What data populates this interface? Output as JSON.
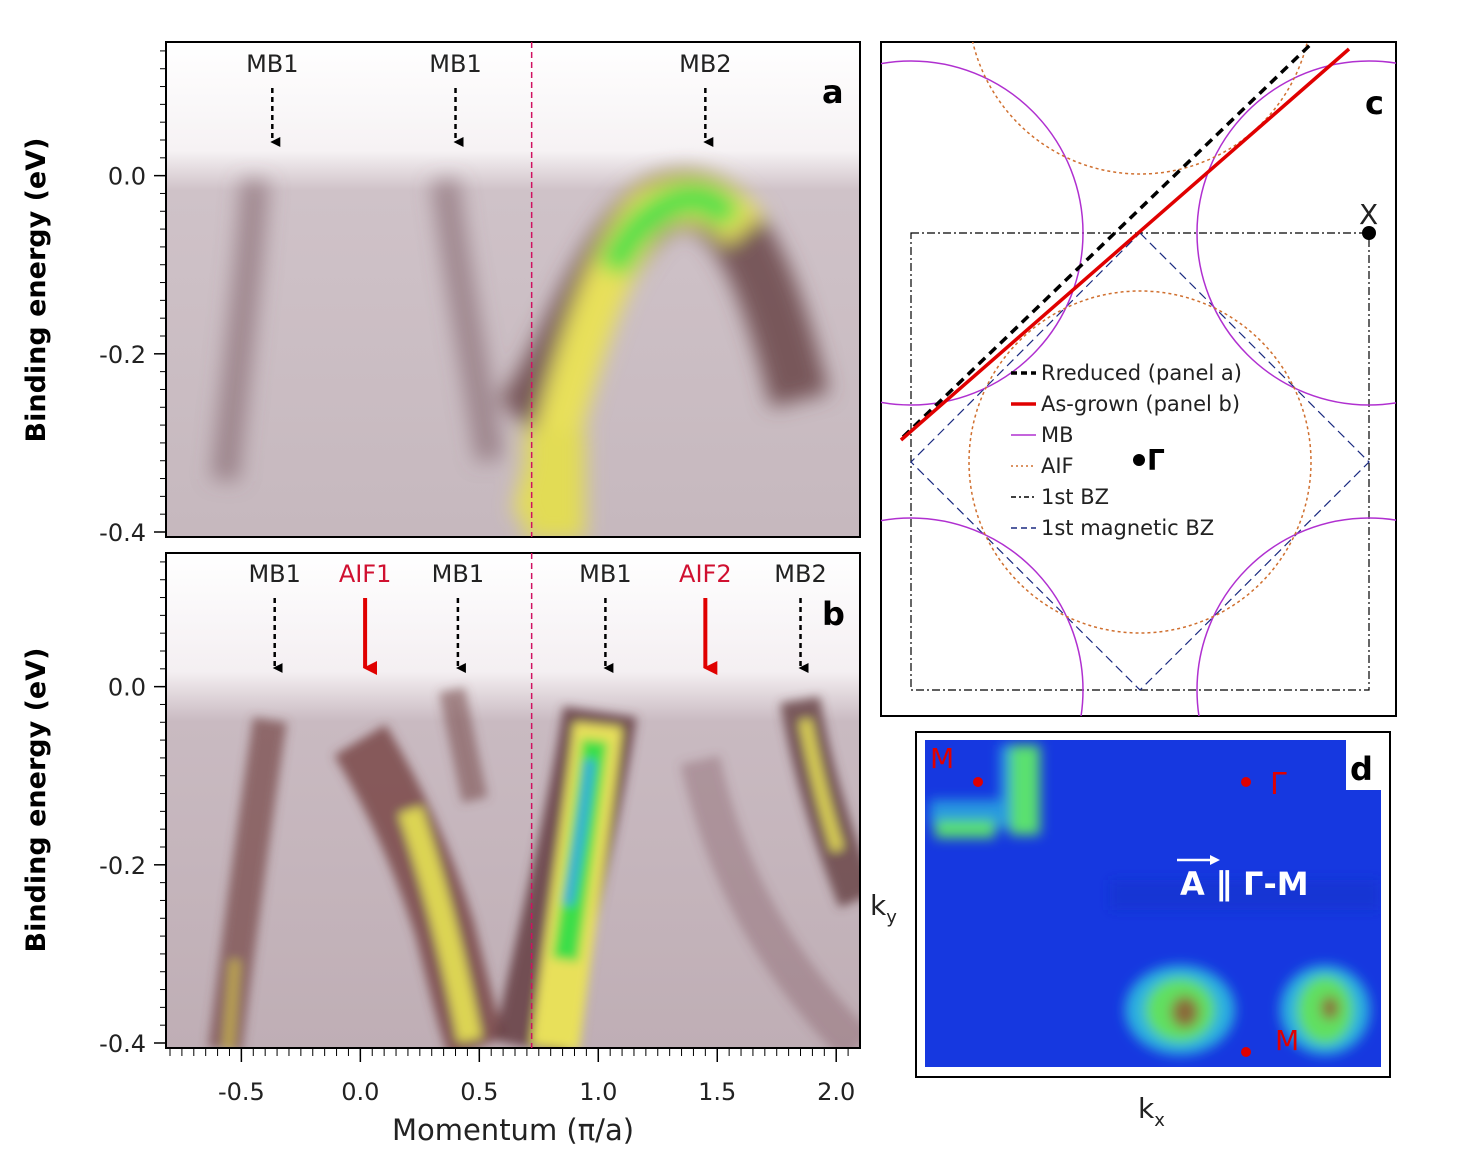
{
  "panels": {
    "a": {
      "letter": "a",
      "ylabel": "Binding energy (eV)",
      "ylim": [
        -0.4,
        0.15
      ],
      "xlim": [
        -0.8,
        2.1
      ],
      "yticks": [
        {
          "value": 0.0,
          "label": "0.0"
        },
        {
          "value": -0.2,
          "label": "-0.2"
        },
        {
          "value": -0.4,
          "label": "-0.4"
        }
      ],
      "divider_momentum": 0.72,
      "arrows": [
        {
          "label": "MB1",
          "momentum": -0.37,
          "color": "black",
          "style": "dashed"
        },
        {
          "label": "MB1",
          "momentum": 0.4,
          "color": "black",
          "style": "dashed"
        },
        {
          "label": "MB2",
          "momentum": 1.45,
          "color": "black",
          "style": "dashed"
        }
      ]
    },
    "b": {
      "letter": "b",
      "ylabel": "Binding energy (eV)",
      "xlabel": "Momentum (π/a)",
      "ylim": [
        -0.4,
        0.15
      ],
      "xlim": [
        -0.8,
        2.1
      ],
      "yticks": [
        {
          "value": 0.0,
          "label": "0.0"
        },
        {
          "value": -0.2,
          "label": "-0.2"
        },
        {
          "value": -0.4,
          "label": "-0.4"
        }
      ],
      "xticks": [
        {
          "value": -0.5,
          "label": "-0.5"
        },
        {
          "value": 0.0,
          "label": "0.0"
        },
        {
          "value": 0.5,
          "label": "0.5"
        },
        {
          "value": 1.0,
          "label": "1.0"
        },
        {
          "value": 1.5,
          "label": "1.5"
        },
        {
          "value": 2.0,
          "label": "2.0"
        }
      ],
      "divider_momentum": 0.72,
      "arrows": [
        {
          "label": "MB1",
          "momentum": -0.36,
          "color": "black",
          "style": "dashed"
        },
        {
          "label": "AIF1",
          "momentum": 0.02,
          "color": "red",
          "style": "solid"
        },
        {
          "label": "MB1",
          "momentum": 0.41,
          "color": "black",
          "style": "dashed"
        },
        {
          "label": "MB1",
          "momentum": 1.03,
          "color": "black",
          "style": "dashed"
        },
        {
          "label": "AIF2",
          "momentum": 1.45,
          "color": "red",
          "style": "solid"
        },
        {
          "label": "MB2",
          "momentum": 1.85,
          "color": "black",
          "style": "dashed"
        }
      ]
    },
    "c": {
      "letter": "c",
      "legend": [
        {
          "label": "Rreduced (panel a)",
          "color": "#000000",
          "style": "dashed"
        },
        {
          "label": "As-grown (panel b)",
          "color": "#e00000",
          "style": "solid"
        },
        {
          "label": "MB",
          "color": "#b030d0",
          "style": "solid"
        },
        {
          "label": "AIF",
          "color": "#d07030",
          "style": "dotted"
        },
        {
          "label": "1st BZ",
          "color": "#000000",
          "style": "dashdot"
        },
        {
          "label": "1st magnetic BZ",
          "color": "#1a2a80",
          "style": "dashed"
        }
      ],
      "point_labels": {
        "gamma": "Γ",
        "x": "X"
      }
    },
    "d": {
      "letter": "d",
      "annotation": "A ∥ Γ-M",
      "point_labels": {
        "m_top": "M",
        "gamma": "Γ",
        "m_bottom": "M"
      },
      "xlabel": "k",
      "xlabel_sub": "x",
      "ylabel": "k",
      "ylabel_sub": "y"
    }
  },
  "chart_data": [
    {
      "panel": "a",
      "type": "heatmap",
      "title": "",
      "xlabel": "",
      "ylabel": "Binding energy (eV)",
      "xlim": [
        -0.8,
        2.1
      ],
      "ylim": [
        -0.4,
        0.15
      ],
      "bands": [
        {
          "name": "MB1",
          "x": [
            -0.37,
            -0.42,
            -0.48,
            -0.55
          ],
          "y": [
            0.0,
            -0.08,
            -0.18,
            -0.3
          ]
        },
        {
          "name": "MB1",
          "x": [
            0.4,
            0.45,
            0.52,
            0.6
          ],
          "y": [
            0.0,
            -0.08,
            -0.17,
            -0.28
          ]
        },
        {
          "name": "MB2",
          "x": [
            0.74,
            0.9,
            1.1,
            1.3,
            1.45,
            1.6,
            1.75,
            1.9
          ],
          "y": [
            -0.28,
            -0.3,
            -0.2,
            -0.07,
            -0.03,
            -0.07,
            -0.18,
            -0.32
          ]
        }
      ],
      "annotations": [
        "MB1",
        "MB1",
        "MB2"
      ]
    },
    {
      "panel": "b",
      "type": "heatmap",
      "title": "",
      "xlabel": "Momentum (π/a)",
      "ylabel": "Binding energy (eV)",
      "xlim": [
        -0.8,
        2.1
      ],
      "ylim": [
        -0.4,
        0.15
      ],
      "bands": [
        {
          "name": "MB1",
          "x": [
            -0.36,
            -0.42,
            -0.5,
            -0.58
          ],
          "y": [
            0.0,
            -0.12,
            -0.26,
            -0.38
          ]
        },
        {
          "name": "AIF1",
          "x": [
            0.02,
            0.15,
            0.3,
            0.45,
            0.55
          ],
          "y": [
            -0.02,
            -0.1,
            -0.2,
            -0.32,
            -0.4
          ]
        },
        {
          "name": "MB1",
          "x": [
            0.41,
            0.45,
            0.5
          ],
          "y": [
            0.0,
            -0.05,
            -0.1
          ]
        },
        {
          "name": "MB1",
          "x": [
            1.03,
            0.98,
            0.9,
            0.8,
            0.72
          ],
          "y": [
            -0.04,
            -0.12,
            -0.22,
            -0.32,
            -0.4
          ]
        },
        {
          "name": "MB2",
          "x": [
            1.85,
            1.9,
            1.96
          ],
          "y": [
            -0.02,
            -0.1,
            -0.2
          ]
        }
      ],
      "annotations": [
        "MB1",
        "AIF1",
        "MB1",
        "MB1",
        "AIF2",
        "MB2"
      ]
    },
    {
      "panel": "c",
      "type": "scatter",
      "series": [
        {
          "name": "Rreduced (panel a)"
        },
        {
          "name": "As-grown (panel b)"
        },
        {
          "name": "MB"
        },
        {
          "name": "AIF"
        },
        {
          "name": "1st BZ"
        },
        {
          "name": "1st magnetic BZ"
        }
      ]
    },
    {
      "panel": "d",
      "type": "heatmap",
      "xlabel": "kx",
      "ylabel": "ky",
      "annotations": [
        "M",
        "Γ",
        "A ∥ Γ-M",
        "M"
      ]
    }
  ]
}
